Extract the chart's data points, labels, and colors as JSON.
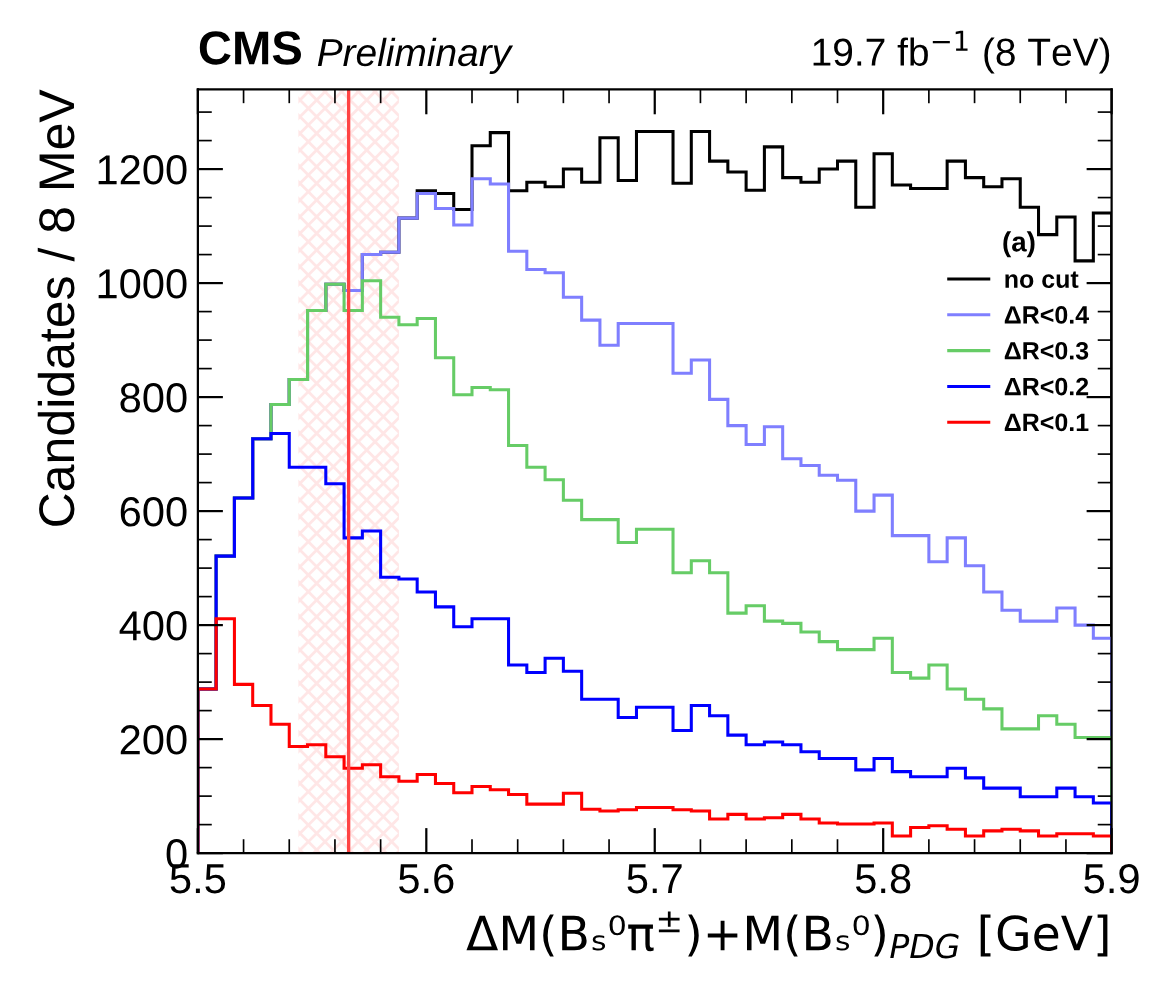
{
  "chart_data": {
    "type": "histogram",
    "title": "CMS",
    "subtitle": "Preliminary",
    "annotations": [
      "19.7 fb$^{−1}$ (8 TeV)"
    ],
    "xlabel": "ΔM(Bₛ⁰π$^{±}$)+M(Bₛ⁰)$_{PDG}$ [GeV]",
    "ylabel": "Candidates / 8 MeV",
    "legend_title": "(a)",
    "legend": "right",
    "bins": [
      5.5,
      5.508,
      5.516,
      5.524,
      5.532,
      5.54,
      5.548,
      5.556,
      5.564,
      5.572,
      5.58,
      5.588,
      5.596,
      5.604,
      5.612,
      5.62,
      5.628,
      5.636,
      5.644,
      5.652,
      5.66,
      5.668,
      5.676,
      5.684,
      5.692,
      5.7,
      5.708,
      5.716,
      5.724,
      5.732,
      5.74,
      5.748,
      5.756,
      5.764,
      5.772,
      5.78,
      5.788,
      5.796,
      5.804,
      5.812,
      5.82,
      5.828,
      5.836,
      5.844,
      5.852,
      5.86,
      5.868,
      5.876,
      5.884,
      5.892,
      5.9
    ],
    "series": [
      {
        "name": "no cut",
        "color": "#000000",
        "values": [
          288,
          521,
          623,
          727,
          787,
          831,
          952,
          998,
          987,
          1050,
          1054,
          1114,
          1162,
          1157,
          1129,
          1241,
          1264,
          1162,
          1177,
          1169,
          1200,
          1177,
          1255,
          1180,
          1266,
          1266,
          1175,
          1266,
          1214,
          1195,
          1163,
          1239,
          1185,
          1177,
          1200,
          1214,
          1133,
          1227,
          1172,
          1166,
          1166,
          1214,
          1185,
          1169,
          1183,
          1133,
          1085,
          1116,
          1039,
          1123
        ]
      },
      {
        "name": "ΔR<0.4",
        "color": "#7f7fff",
        "values": [
          288,
          521,
          623,
          727,
          787,
          831,
          952,
          998,
          987,
          1050,
          1054,
          1114,
          1157,
          1131,
          1102,
          1183,
          1174,
          1056,
          1024,
          1018,
          975,
          935,
          891,
          929,
          929,
          929,
          842,
          865,
          796,
          750,
          717,
          748,
          692,
          680,
          663,
          654,
          600,
          628,
          557,
          557,
          511,
          553,
          504,
          458,
          426,
          407,
          407,
          430,
          400,
          377
        ]
      },
      {
        "name": "ΔR<0.3",
        "color": "#66cc66",
        "values": [
          288,
          521,
          623,
          727,
          787,
          831,
          952,
          998,
          952,
          1004,
          940,
          927,
          938,
          869,
          804,
          817,
          813,
          715,
          677,
          655,
          619,
          585,
          585,
          545,
          568,
          568,
          492,
          513,
          492,
          421,
          434,
          407,
          403,
          388,
          371,
          357,
          357,
          377,
          317,
          307,
          330,
          288,
          270,
          253,
          218,
          218,
          241,
          226,
          203,
          203
        ]
      },
      {
        "name": "ΔR<0.2",
        "color": "#0000ff",
        "values": [
          288,
          521,
          623,
          727,
          736,
          677,
          677,
          648,
          553,
          565,
          484,
          481,
          458,
          432,
          397,
          411,
          411,
          330,
          317,
          342,
          319,
          270,
          270,
          238,
          256,
          256,
          215,
          259,
          241,
          207,
          190,
          195,
          190,
          178,
          166,
          166,
          146,
          166,
          143,
          134,
          134,
          149,
          132,
          114,
          114,
          99,
          99,
          114,
          99,
          88
        ]
      },
      {
        "name": "ΔR<0.1",
        "color": "#ff0000",
        "values": [
          288,
          411,
          296,
          259,
          226,
          187,
          190,
          169,
          149,
          155,
          134,
          126,
          138,
          122,
          106,
          117,
          111,
          103,
          86,
          86,
          105,
          77,
          74,
          76,
          80,
          80,
          76,
          74,
          60,
          68,
          60,
          62,
          68,
          60,
          53,
          51,
          51,
          53,
          30,
          45,
          48,
          42,
          30,
          39,
          42,
          39,
          30,
          34,
          34,
          30
        ]
      }
    ],
    "ref_lines": [
      {
        "axis": "x",
        "value": 5.566,
        "color": "#ff4444"
      }
    ],
    "bands": [
      {
        "axis": "x",
        "from": 5.544,
        "to": 5.588,
        "color": "#ff9999"
      }
    ],
    "xlim": [
      5.5,
      5.9
    ],
    "xticks": [
      5.5,
      5.6,
      5.7,
      5.8,
      5.9
    ],
    "ylim": [
      0,
      1340
    ],
    "yticks": [
      0,
      200,
      400,
      600,
      800,
      1000,
      1200
    ]
  }
}
